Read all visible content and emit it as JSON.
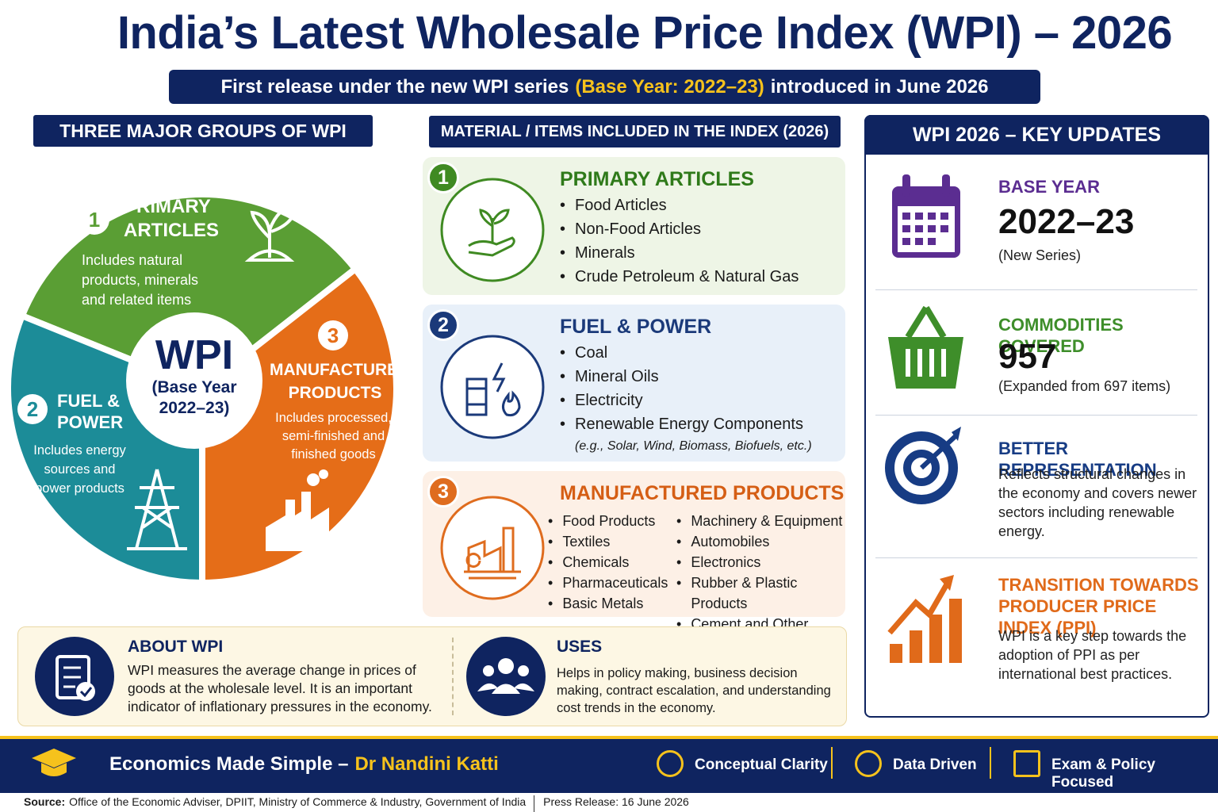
{
  "header": {
    "title": "India’s Latest Wholesale Price Index (WPI) – 2026",
    "subtitle_start": "First release under the new WPI series",
    "subtitle_highlight": "(Base Year: 2022–23)",
    "subtitle_end": "introduced in June 2026"
  },
  "groups": {
    "heading": "THREE MAJOR GROUPS OF WPI",
    "center_label": "WPI",
    "center_sub": [
      "(Base Year",
      "2022–23)"
    ],
    "items": [
      {
        "number": "1",
        "title": "PRIMARY ARTICLES",
        "text": "Includes natural products, minerals and related items"
      },
      {
        "number": "2",
        "title": "FUEL & POWER",
        "text": "Includes energy sources and power products"
      },
      {
        "number": "3",
        "title": "MANUFACTURED PRODUCTS",
        "text": "Includes processed, semi-finished and finished goods"
      }
    ]
  },
  "materials": {
    "heading": "MATERIAL / ITEMS INCLUDED IN THE INDEX (2026)",
    "items": [
      {
        "number": "1",
        "title": "PRIMARY ARTICLES",
        "items": [
          "Food Articles",
          "Non-Food Articles",
          "Minerals",
          "Crude Petroleum & Natural Gas"
        ]
      },
      {
        "number": "2",
        "title": "FUEL & POWER",
        "items": [
          "Coal",
          "Mineral Oils",
          "Electricity",
          "Renewable Energy Components"
        ],
        "note": "(e.g., Solar, Wind, Biomass, Biofuels, etc.)"
      },
      {
        "number": "3",
        "title": "MANUFACTURED PRODUCTS",
        "items": [
          "Food Products",
          "Textiles",
          "Chemicals",
          "Pharmaceuticals",
          "Basic Metals",
          "Machinery & Equipment",
          "Automobiles",
          "Electronics",
          "Rubber & Plastic Products",
          "Cement and Other Industrial Goods"
        ]
      }
    ]
  },
  "updates": {
    "heading": "WPI 2026 – KEY UPDATES",
    "items": [
      {
        "label": "BASE YEAR",
        "value": "2022–23",
        "note": "(New Series)"
      },
      {
        "label": "COMMODITIES COVERED",
        "value": "957",
        "note": "(Expanded from 697 items)"
      },
      {
        "label": "BETTER REPRESENTATION",
        "note": "Reflects structural changes in the economy and covers newer sectors including renewable energy."
      },
      {
        "label": "TRANSITION TOWARDS PRODUCER PRICE INDEX (PPI)",
        "note": "WPI is a key step towards the adoption of PPI as per international best practices."
      }
    ]
  },
  "about": {
    "title": "ABOUT WPI",
    "text": "WPI measures the average change in prices of goods at the wholesale level. It is an important indicator of inflationary pressures in the economy."
  },
  "uses": {
    "title": "USES",
    "text": "Helps in policy making, business decision making, contract escalation, and understanding cost trends in the economy."
  },
  "footer": {
    "brand": "Economics Made Simple –",
    "author": "Dr Nandini Katti",
    "tags": [
      "Conceptual Clarity",
      "Data Driven",
      "Exam & Policy Focused"
    ],
    "source_label": "Source:",
    "source": "Office of the Economic Adviser, DPIIT, Ministry of Commerce & Industry, Government of India",
    "press_release": "Press Release: 16 June 2026"
  }
}
